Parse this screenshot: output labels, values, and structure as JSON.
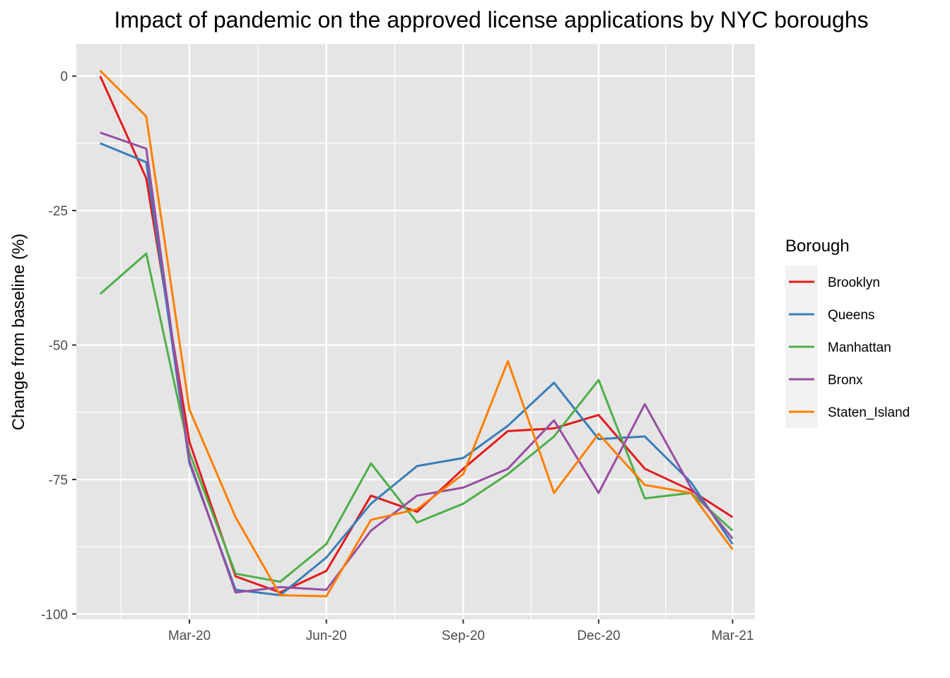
{
  "chart_data": {
    "type": "line",
    "title": "Impact of pandemic on the approved license applications by NYC boroughs",
    "xlabel": "",
    "ylabel": "Change from baseline (%)",
    "x": [
      "2020-01",
      "2020-02",
      "2020-03",
      "2020-04",
      "2020-05",
      "2020-06",
      "2020-07",
      "2020-08",
      "2020-09",
      "2020-10",
      "2020-11",
      "2020-12",
      "2021-01",
      "2021-02",
      "2021-03"
    ],
    "xlim": [
      "2019-12-16",
      "2021-03-16"
    ],
    "x_ticks": [
      {
        "label": "Mar-20",
        "date": "2020-03-01"
      },
      {
        "label": "Jun-20",
        "date": "2020-06-01"
      },
      {
        "label": "Sep-20",
        "date": "2020-09-01"
      },
      {
        "label": "Dec-20",
        "date": "2020-12-01"
      },
      {
        "label": "Mar-21",
        "date": "2021-03-01"
      }
    ],
    "ylim": [
      -101,
      6
    ],
    "y_ticks": [
      0,
      -25,
      -50,
      -75,
      -100
    ],
    "y_tick_labels": [
      "0",
      "-25",
      "-50",
      "-75",
      "-100"
    ],
    "grid": true,
    "legend": {
      "title": "Borough",
      "position": "right"
    },
    "series": [
      {
        "name": "Brooklyn",
        "color": "#e41a1c",
        "values": [
          0,
          -19,
          -68,
          -93,
          -96,
          -92,
          -78,
          -81,
          -73,
          -66,
          -65.5,
          -63,
          -73,
          -77,
          -82
        ]
      },
      {
        "name": "Queens",
        "color": "#377eb8",
        "values": [
          -12.5,
          -16,
          -72,
          -95.5,
          -96.5,
          -89.5,
          -79.5,
          -72.5,
          -71,
          -65,
          -57,
          -67.5,
          -67,
          -75.5,
          -87
        ]
      },
      {
        "name": "Manhattan",
        "color": "#4daf4a",
        "values": [
          -40.5,
          -33,
          -70,
          -92.5,
          -94,
          -87,
          -72,
          -83,
          -79.5,
          -74,
          -67,
          -56.5,
          -78.5,
          -77.5,
          -84.5
        ]
      },
      {
        "name": "Bronx",
        "color": "#984ea3",
        "values": [
          -10.5,
          -13.5,
          -71.5,
          -96,
          -95,
          -95.5,
          -84.5,
          -78,
          -76.5,
          -73,
          -64,
          -77.5,
          -61,
          -76.5,
          -86
        ]
      },
      {
        "name": "Staten_Island",
        "color": "#ff7f00",
        "values": [
          1,
          -7.5,
          -62,
          -82,
          -96.5,
          -96.7,
          -82.5,
          -80.5,
          -74,
          -53,
          -77.5,
          -66.5,
          -76,
          -77.5,
          -88
        ]
      }
    ]
  }
}
